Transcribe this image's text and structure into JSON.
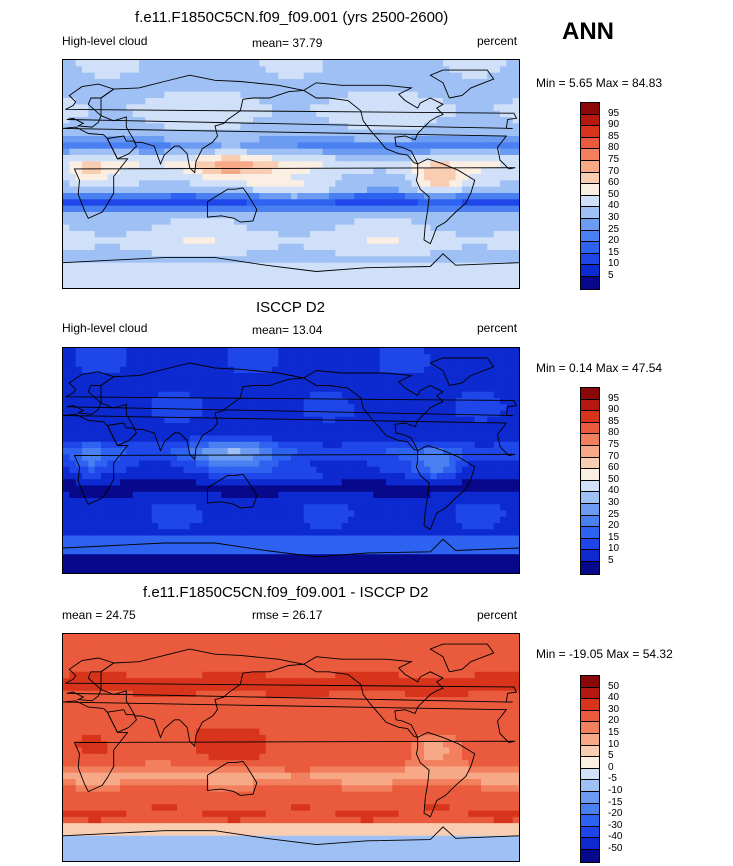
{
  "season": "ANN",
  "colors": {
    "abs_scale": [
      "#08088a",
      "#0c2ad0",
      "#1e46e8",
      "#2e62f0",
      "#4a80f2",
      "#6c9cf2",
      "#9ec0f4",
      "#cfe0f8",
      "#fbeee2",
      "#f9cdb2",
      "#f7a886",
      "#f2805e",
      "#ea5a3c",
      "#d8341c",
      "#b4180e",
      "#8a0808"
    ],
    "diff_scale": [
      "#08088a",
      "#0c2ad0",
      "#1e46e8",
      "#2e62f0",
      "#4a80f2",
      "#6c9cf2",
      "#9ec0f4",
      "#cfe0f8",
      "#fbeee2",
      "#f9cdb2",
      "#f7a886",
      "#f2805e",
      "#ea5a3c",
      "#d8341c",
      "#b4180e",
      "#8a0808"
    ]
  },
  "panels": [
    {
      "title": "f.e11.F1850C5CN.f09_f09.001 (yrs 2500-2600)",
      "left_label": "High-level cloud",
      "center_label": "mean=  37.79",
      "right_label": "percent",
      "minmax": "Min =   5.65 Max =  84.83",
      "field": "model",
      "colorbar_labels": [
        "95",
        "90",
        "85",
        "80",
        "75",
        "70",
        "60",
        "50",
        "40",
        "30",
        "25",
        "20",
        "15",
        "10",
        "5"
      ]
    },
    {
      "title": "ISCCP D2",
      "left_label": "High-level cloud",
      "center_label": "mean=  13.04",
      "right_label": "percent",
      "minmax": "Min =   0.14 Max =  47.54",
      "field": "obs",
      "colorbar_labels": [
        "95",
        "90",
        "85",
        "80",
        "75",
        "70",
        "60",
        "50",
        "40",
        "30",
        "25",
        "20",
        "15",
        "10",
        "5"
      ]
    },
    {
      "title": "f.e11.F1850C5CN.f09_f09.001 - ISCCP D2",
      "left_label": "mean =  24.75",
      "center_label": "rmse =  26.17",
      "right_label": "percent",
      "minmax": "Min = -19.05 Max =  54.32",
      "field": "diff",
      "colorbar_labels": [
        "50",
        "40",
        "30",
        "20",
        "15",
        "10",
        "5",
        "0",
        "-5",
        "-10",
        "-15",
        "-20",
        "-30",
        "-40",
        "-50"
      ]
    }
  ],
  "chart_data": [
    {
      "type": "heatmap",
      "title": "f.e11.F1850C5CN.f09_f09.001 (yrs 2500-2600)",
      "variable": "High-level cloud",
      "units": "percent",
      "mean": 37.79,
      "min": 5.65,
      "max": 84.83,
      "levels": [
        5,
        10,
        15,
        20,
        25,
        30,
        40,
        50,
        60,
        70,
        75,
        80,
        85,
        90,
        95
      ]
    },
    {
      "type": "heatmap",
      "title": "ISCCP D2",
      "variable": "High-level cloud",
      "units": "percent",
      "mean": 13.04,
      "min": 0.14,
      "max": 47.54,
      "levels": [
        5,
        10,
        15,
        20,
        25,
        30,
        40,
        50,
        60,
        70,
        75,
        80,
        85,
        90,
        95
      ]
    },
    {
      "type": "heatmap",
      "title": "f.e11.F1850C5CN.f09_f09.001 - ISCCP D2",
      "units": "percent",
      "mean": 24.75,
      "rmse": 26.17,
      "min": -19.05,
      "max": 54.32,
      "levels": [
        -50,
        -40,
        -30,
        -20,
        -15,
        -10,
        -5,
        0,
        5,
        10,
        15,
        20,
        30,
        40,
        50
      ]
    }
  ]
}
